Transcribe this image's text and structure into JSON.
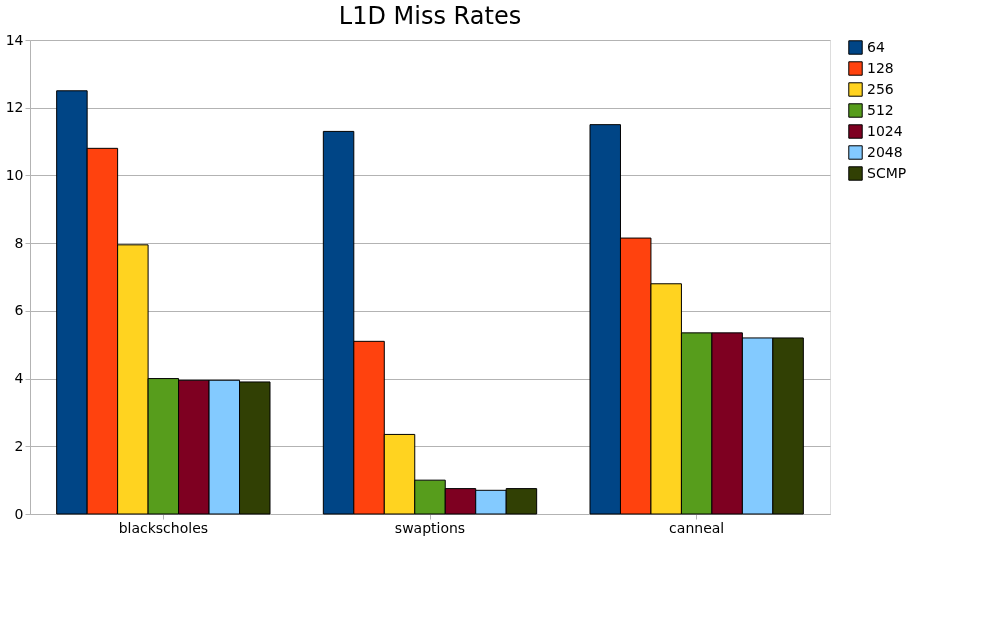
{
  "chart_data": {
    "type": "bar",
    "title": "L1D Miss Rates",
    "categories": [
      "blackscholes",
      "swaptions",
      "canneal"
    ],
    "series": [
      {
        "name": "64",
        "color": "#004586",
        "values": [
          12.5,
          11.3,
          11.5
        ]
      },
      {
        "name": "128",
        "color": "#ff420e",
        "values": [
          10.8,
          5.1,
          8.15
        ]
      },
      {
        "name": "256",
        "color": "#ffd320",
        "values": [
          7.95,
          2.35,
          6.8
        ]
      },
      {
        "name": "512",
        "color": "#579d1c",
        "values": [
          4.0,
          1.0,
          5.35
        ]
      },
      {
        "name": "1024",
        "color": "#7e0021",
        "values": [
          3.95,
          0.75,
          5.35
        ]
      },
      {
        "name": "2048",
        "color": "#83caff",
        "values": [
          3.95,
          0.7,
          5.2
        ]
      },
      {
        "name": "SCMP",
        "color": "#314004",
        "values": [
          3.9,
          0.75,
          5.2
        ]
      }
    ],
    "ylim": [
      0,
      14
    ],
    "yticks": [
      0,
      2,
      4,
      6,
      8,
      10,
      12,
      14
    ],
    "grid": "y",
    "legend": "right"
  }
}
